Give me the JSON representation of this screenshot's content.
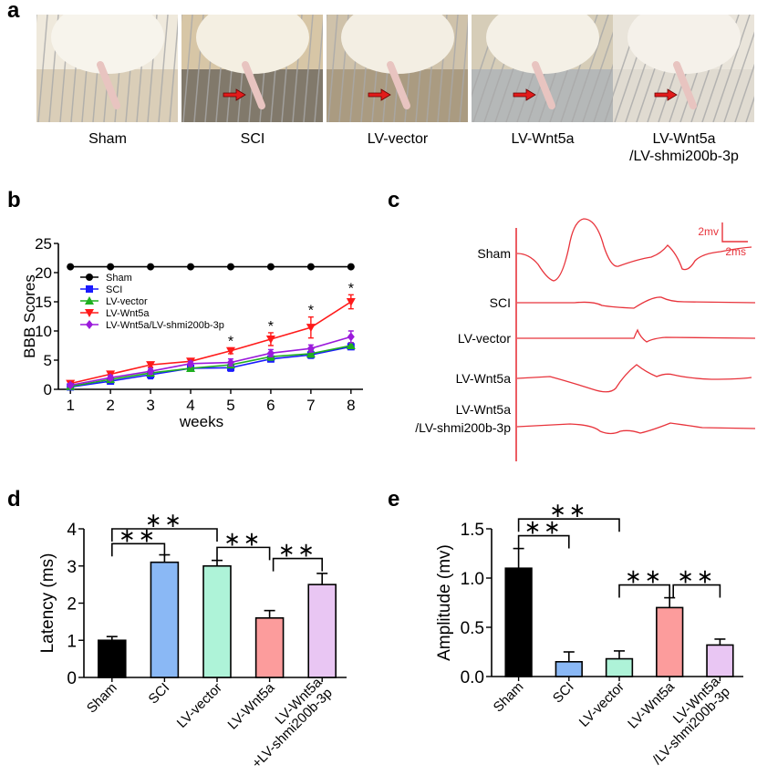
{
  "panels": {
    "a": {
      "letter": "a",
      "photos": [
        {
          "label": "Sham",
          "arrow": false
        },
        {
          "label": "SCI",
          "arrow": true
        },
        {
          "label": "LV-vector",
          "arrow": true
        },
        {
          "label": "LV-Wnt5a",
          "arrow": true
        },
        {
          "label": "LV-Wnt5a",
          "label2": "/LV-shmi200b-3p",
          "arrow": true
        }
      ]
    },
    "b": {
      "letter": "b"
    },
    "c": {
      "letter": "c",
      "scale_v": "2mv",
      "scale_t": "2ms",
      "traces": [
        {
          "label": "Sham"
        },
        {
          "label": "SCI"
        },
        {
          "label": "LV-vector"
        },
        {
          "label": "LV-Wnt5a"
        },
        {
          "label": "LV-Wnt5a",
          "label2": "/LV-shmi200b-3p"
        }
      ],
      "color": "#e8343c"
    },
    "d": {
      "letter": "d"
    },
    "e": {
      "letter": "e"
    }
  },
  "chart_data": [
    {
      "id": "b",
      "type": "line",
      "title": "",
      "xlabel": "weeks",
      "ylabel": "BBB Scores",
      "x": [
        1,
        2,
        3,
        4,
        5,
        6,
        7,
        8
      ],
      "xlim": [
        0.7,
        8.3
      ],
      "ylim": [
        0,
        25
      ],
      "yticks": [
        0,
        5,
        10,
        15,
        20,
        25
      ],
      "legend": "top-left",
      "series": [
        {
          "name": "Sham",
          "color": "#000000",
          "marker": "circle",
          "values": [
            21,
            21,
            21,
            21,
            21,
            21,
            21,
            21
          ],
          "errors": [
            0,
            0,
            0,
            0,
            0,
            0,
            0,
            0
          ]
        },
        {
          "name": "SCI",
          "color": "#1a1aff",
          "marker": "square",
          "values": [
            0.4,
            1.4,
            2.5,
            3.6,
            3.7,
            5.2,
            5.9,
            7.3
          ],
          "errors": [
            0.3,
            0.4,
            0.7,
            0.4,
            0.6,
            0.5,
            0.6,
            0.5
          ]
        },
        {
          "name": "LV-vector",
          "color": "#1fb01f",
          "marker": "triangle-up",
          "values": [
            0.5,
            1.7,
            2.8,
            3.6,
            4.2,
            5.6,
            6.1,
            7.5
          ],
          "errors": [
            0.3,
            0.4,
            0.5,
            0.3,
            0.5,
            0.6,
            0.6,
            0.5
          ]
        },
        {
          "name": "LV-Wnt5a",
          "color": "#ff1a1a",
          "marker": "triangle-down",
          "values": [
            1.0,
            2.6,
            4.2,
            4.8,
            6.6,
            8.6,
            10.6,
            15.0
          ],
          "errors": [
            0.3,
            0.4,
            0.4,
            0.4,
            0.5,
            1.1,
            1.8,
            1.2
          ]
        },
        {
          "name": "LV-Wnt5a/LV-shmi200b-3p",
          "color": "#9b1adb",
          "marker": "diamond",
          "values": [
            0.7,
            2.0,
            3.1,
            4.4,
            4.6,
            6.2,
            7.0,
            9.0
          ],
          "errors": [
            0.3,
            0.4,
            0.5,
            0.4,
            0.6,
            0.6,
            0.6,
            1.0
          ]
        }
      ],
      "annotations": [
        {
          "x": 5,
          "text": "*"
        },
        {
          "x": 6,
          "text": "*"
        },
        {
          "x": 7,
          "text": "*"
        },
        {
          "x": 8,
          "text": "*"
        }
      ]
    },
    {
      "id": "d",
      "type": "bar",
      "title": "",
      "xlabel": "",
      "ylabel": "Latency (ms)",
      "ylim": [
        0,
        4
      ],
      "yticks": [
        "0",
        "1",
        "2",
        "3",
        "4"
      ],
      "categories": [
        "Sham",
        "SCI",
        "LV-vector",
        "LV-Wnt5a",
        "LV-Wnt5a\n+LV-shmi200b-3p"
      ],
      "values": [
        1.0,
        3.1,
        3.0,
        1.6,
        2.5
      ],
      "errors": [
        0.1,
        0.2,
        0.15,
        0.2,
        0.3
      ],
      "colors": [
        "#000000",
        "#8ab8f5",
        "#aef3d8",
        "#fc9c9c",
        "#e9c6f3"
      ],
      "significance": [
        {
          "from": 0,
          "to": 2,
          "level": 4.0,
          "text": "**"
        },
        {
          "from": 0,
          "to": 1,
          "level": 3.6,
          "text": "**"
        },
        {
          "from": 2,
          "to": 3,
          "level": 3.5,
          "text": "**"
        },
        {
          "from": 3,
          "to": 4,
          "level": 3.2,
          "text": "**"
        }
      ]
    },
    {
      "id": "e",
      "type": "bar",
      "title": "",
      "xlabel": "",
      "ylabel": "Amplitude (mv)",
      "ylim": [
        0,
        1.5
      ],
      "yticks": [
        "0.0",
        "0.5",
        "1.0",
        "1.5"
      ],
      "categories": [
        "Sham",
        "SCI",
        "LV-vector",
        "LV-Wnt5a",
        "LV-Wnt5a\n/LV-shmi200b-3p"
      ],
      "values": [
        1.1,
        0.15,
        0.18,
        0.7,
        0.32
      ],
      "errors": [
        0.2,
        0.1,
        0.08,
        0.1,
        0.06
      ],
      "colors": [
        "#000000",
        "#8ab8f5",
        "#aef3d8",
        "#fc9c9c",
        "#e9c6f3"
      ],
      "significance": [
        {
          "from": 0,
          "to": 2,
          "level": 1.6,
          "text": "**"
        },
        {
          "from": 0,
          "to": 1,
          "level": 1.43,
          "text": "**"
        },
        {
          "from": 2,
          "to": 3,
          "level": 0.93,
          "text": "**"
        },
        {
          "from": 3,
          "to": 4,
          "level": 0.93,
          "text": "**"
        }
      ]
    }
  ]
}
